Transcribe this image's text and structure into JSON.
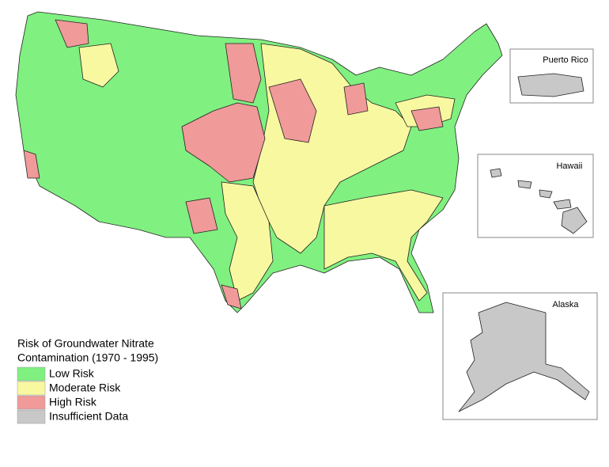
{
  "legend": {
    "title_lines": [
      "Risk of Groundwater Nitrate",
      "Contamination (1970 - 1995)"
    ],
    "items": [
      {
        "label": "Low Risk",
        "color": "#80f080"
      },
      {
        "label": "Moderate Risk",
        "color": "#f8f8a0"
      },
      {
        "label": "High Risk",
        "color": "#f09a9a"
      },
      {
        "label": "Insufficient Data",
        "color": "#c8c8c8"
      }
    ]
  },
  "insets": {
    "puerto_rico": "Puerto Rico",
    "hawaii": "Hawaii",
    "alaska": "Alaska"
  }
}
